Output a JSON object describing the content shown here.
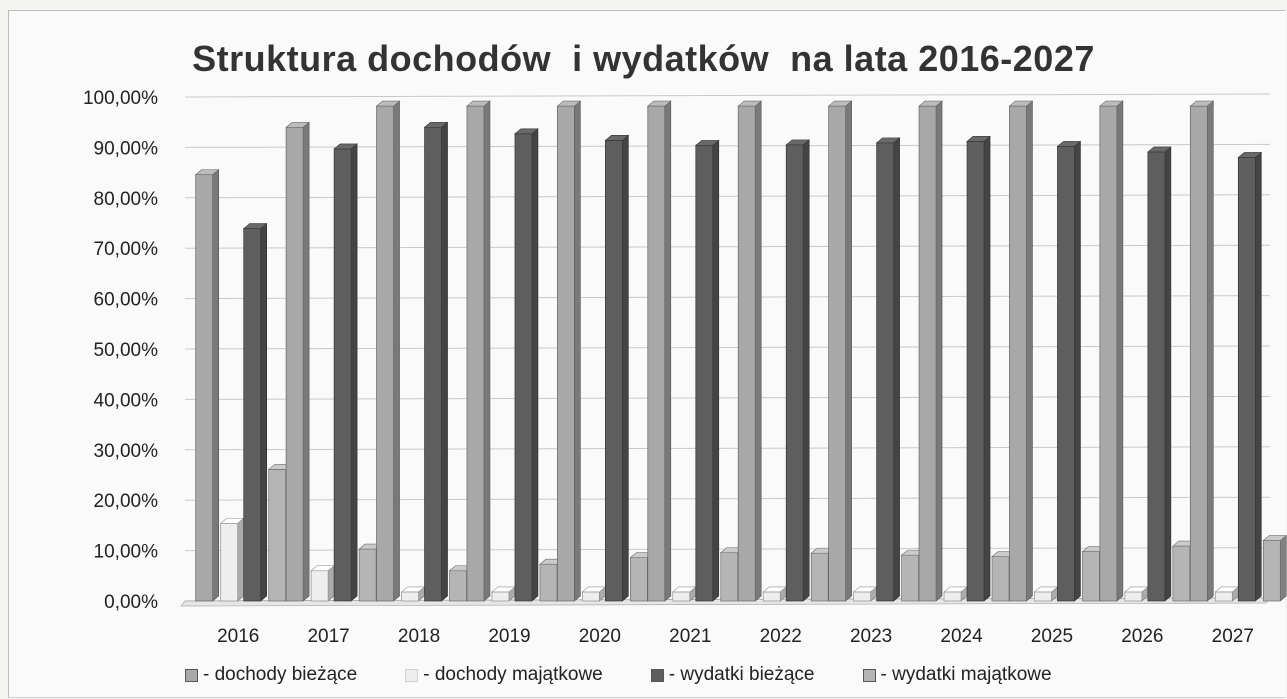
{
  "chart_data": {
    "type": "bar",
    "title": "Struktura dochodów  i wydatków  na lata 2016-2027",
    "xlabel": "",
    "ylabel": "",
    "ylim": [
      0,
      100
    ],
    "yticks": [
      "0,00%",
      "10,00%",
      "20,00%",
      "30,00%",
      "40,00%",
      "50,00%",
      "60,00%",
      "70,00%",
      "80,00%",
      "90,00%",
      "100,00%"
    ],
    "categories": [
      "2016",
      "2017",
      "2018",
      "2019",
      "2020",
      "2021",
      "2022",
      "2023",
      "2024",
      "2025",
      "2026",
      "2027"
    ],
    "grid": true,
    "legend_position": "bottom",
    "series": [
      {
        "name": "- dochody bieżące",
        "color": "#a8a8a8",
        "values": [
          84.6,
          94.0,
          98.2,
          98.2,
          98.2,
          98.2,
          98.2,
          98.2,
          98.2,
          98.2,
          98.2,
          98.2
        ]
      },
      {
        "name": "- dochody majątkowe",
        "color": "#eeeeee",
        "values": [
          15.4,
          6.0,
          1.8,
          1.8,
          1.8,
          1.8,
          1.8,
          1.8,
          1.8,
          1.8,
          1.8,
          1.8
        ]
      },
      {
        "name": "- wydatki bieżące",
        "color": "#5e5e5e",
        "values": [
          73.9,
          89.7,
          94.0,
          92.7,
          91.4,
          90.4,
          90.5,
          90.9,
          91.2,
          90.2,
          89.1,
          88.0
        ]
      },
      {
        "name": "- wydatki majątkowe",
        "color": "#b5b5b5",
        "values": [
          26.1,
          10.3,
          6.0,
          7.3,
          8.6,
          9.6,
          9.5,
          9.1,
          8.8,
          9.8,
          10.9,
          12.0
        ]
      }
    ]
  }
}
